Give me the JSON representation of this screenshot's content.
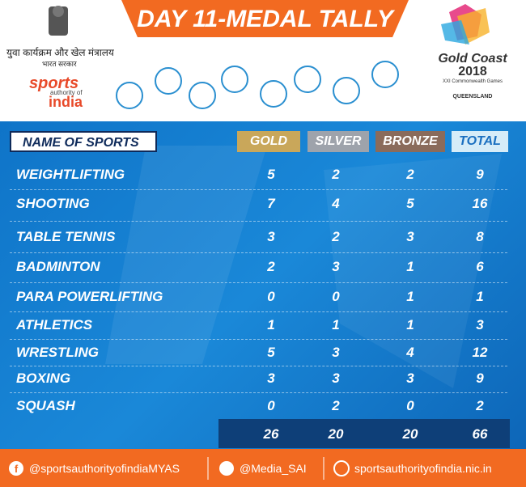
{
  "header": {
    "title": "DAY 11-MEDAL TALLY",
    "ministry": "युवा कार्यक्रम और खेल मंत्रालय",
    "government": "भारत सरकार",
    "sai_logo": [
      "sports",
      "authority of",
      "india"
    ],
    "games_logo": [
      "Gold Coast",
      "2018",
      "XXI Commonwealth Games",
      "QUEENSLAND"
    ]
  },
  "table": {
    "columns": [
      "NAME OF SPORTS",
      "GOLD",
      "SILVER",
      "BRONZE",
      "TOTAL"
    ],
    "rows": [
      [
        "WEIGHTLIFTING",
        "5",
        "2",
        "2",
        "9"
      ],
      [
        "SHOOTING",
        "7",
        "4",
        "5",
        "16"
      ],
      [
        "TABLE TENNIS",
        "3",
        "2",
        "3",
        "8"
      ],
      [
        "BADMINTON",
        "2",
        "3",
        "1",
        "6"
      ],
      [
        "PARA POWERLIFTING",
        "0",
        "0",
        "1",
        "1"
      ],
      [
        "ATHLETICS",
        "1",
        "1",
        "1",
        "3"
      ],
      [
        "WRESTLING",
        "5",
        "3",
        "4",
        "12"
      ],
      [
        "BOXING",
        "3",
        "3",
        "3",
        "9"
      ],
      [
        "SQUASH",
        "0",
        "2",
        "0",
        "2"
      ]
    ],
    "totals": [
      "26",
      "20",
      "20",
      "66"
    ]
  },
  "footer": {
    "facebook": "@sportsauthorityofindiaMYAS",
    "twitter": "@Media_SAI",
    "website": "sportsauthorityofindia.nic.in"
  }
}
